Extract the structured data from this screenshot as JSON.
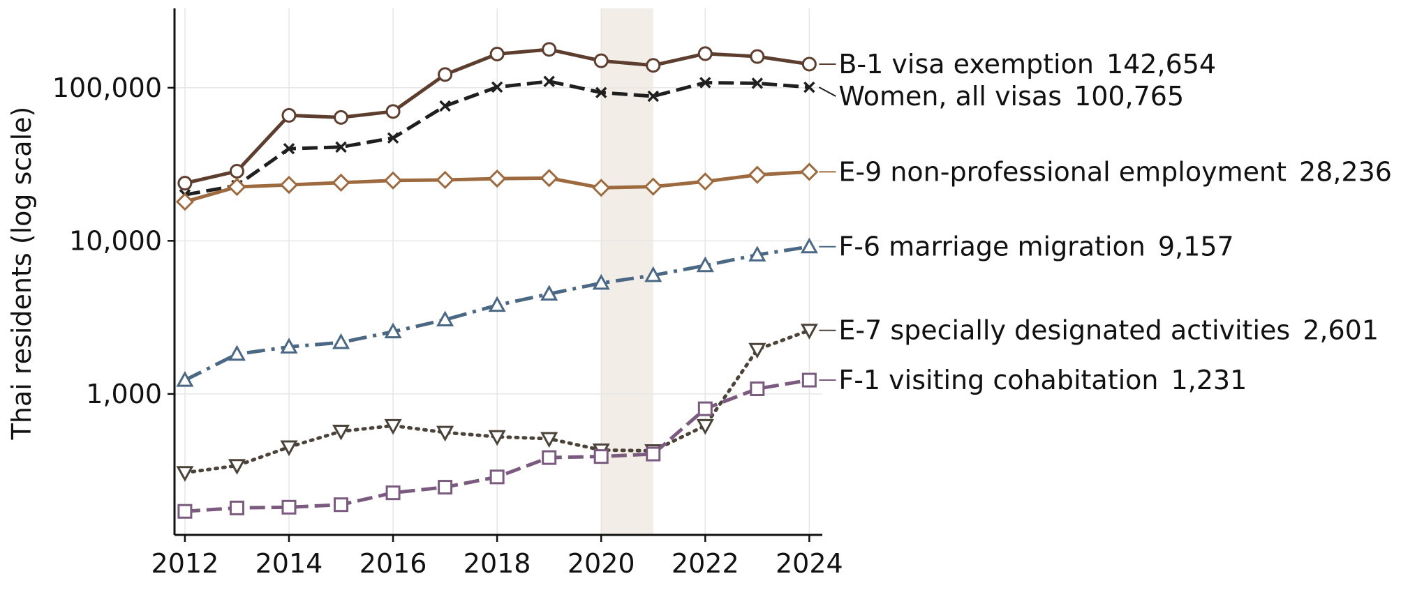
{
  "chart_data": {
    "type": "line",
    "title": "",
    "xlabel": "",
    "ylabel": "Thai residents (log scale)",
    "yscale": "log",
    "ylim": [
      120,
      330000
    ],
    "xlim": [
      2011.8,
      2024.25
    ],
    "grid": true,
    "x": [
      2012,
      2013,
      2014,
      2015,
      2016,
      2017,
      2018,
      2019,
      2020,
      2021,
      2022,
      2023,
      2024
    ],
    "x_ticks": [
      "2012",
      "2014",
      "2016",
      "2018",
      "2020",
      "2022",
      "2024"
    ],
    "y_ticks": [
      "1,000",
      "10,000",
      "100,000"
    ],
    "shaded_span": [
      2020,
      2021
    ],
    "series": [
      {
        "name": "B-1 visa exemption",
        "end_label": "142,654",
        "color": "#5c3d2e",
        "marker": "circle",
        "dash": "solid",
        "values": [
          23800,
          28500,
          66000,
          64000,
          70000,
          122000,
          166000,
          178000,
          150000,
          140000,
          167000,
          160000,
          142654
        ]
      },
      {
        "name": "Women, all visas",
        "end_label": "100,765",
        "color": "#1f1f1f",
        "marker": "x",
        "dash": "dashed",
        "values": [
          20000,
          23000,
          40000,
          41000,
          47000,
          76000,
          101000,
          110000,
          93000,
          88000,
          108000,
          107000,
          100765
        ]
      },
      {
        "name": "E-9 non-professional employment",
        "end_label": "28,236",
        "color": "#9c6a3e",
        "marker": "diamond",
        "dash": "solid",
        "values": [
          18000,
          22500,
          23200,
          24000,
          24800,
          25000,
          25500,
          25700,
          22200,
          22600,
          24400,
          27000,
          28236
        ]
      },
      {
        "name": "F-6 marriage migration",
        "end_label": "9,157",
        "color": "#4a6784",
        "marker": "triangle-up",
        "dash": "dashdot",
        "values": [
          1230,
          1820,
          2030,
          2170,
          2550,
          3050,
          3800,
          4500,
          5300,
          5950,
          6900,
          8100,
          9157
        ]
      },
      {
        "name": "E-7 specially designated activities",
        "end_label": "2,601",
        "color": "#4b433a",
        "marker": "triangle-down",
        "dash": "dotted",
        "values": [
          306,
          340,
          450,
          570,
          620,
          560,
          525,
          510,
          430,
          425,
          620,
          1950,
          2601
        ]
      },
      {
        "name": "F-1 visiting cohabitation",
        "end_label": "1,231",
        "color": "#7a5a7e",
        "marker": "square",
        "dash": "dashed",
        "values": [
          171,
          180,
          182,
          189,
          226,
          246,
          287,
          384,
          390,
          405,
          800,
          1080,
          1231
        ]
      }
    ]
  }
}
